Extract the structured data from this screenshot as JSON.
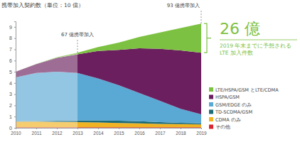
{
  "chart_data": {
    "type": "area",
    "stacked": true,
    "y_label": "携帯加入契約数（単位：10 億）",
    "categories": [
      "2010",
      "2011",
      "2012",
      "2013",
      "2014",
      "2015",
      "2016",
      "2017",
      "2018",
      "2019"
    ],
    "ylim": [
      0,
      9.5
    ],
    "yticks": [
      0,
      1,
      2,
      3,
      4,
      5,
      6,
      7,
      8,
      9
    ],
    "legend": "lower right",
    "series": [
      {
        "name": "LTE/HSPA/GSM とLTE/CDMA",
        "color": "#7dc142",
        "values": [
          0,
          0.01,
          0.06,
          0.15,
          0.35,
          0.65,
          1.0,
          1.45,
          2.0,
          2.6
        ]
      },
      {
        "name": "HSPA/GSM",
        "color": "#6b1f5e",
        "values": [
          0.5,
          0.79,
          1.24,
          1.65,
          2.45,
          3.15,
          4.0,
          4.65,
          5.2,
          5.5
        ]
      },
      {
        "name": "GSM/EDGE のみ",
        "color": "#5aa8d4",
        "values": [
          3.93,
          4.3,
          4.37,
          4.25,
          3.75,
          3.17,
          2.52,
          1.9,
          1.25,
          0.8
        ]
      },
      {
        "name": "TD-SCDMA/GSM",
        "color": "#1d6b78",
        "values": [
          0.02,
          0.05,
          0.1,
          0.15,
          0.18,
          0.2,
          0.18,
          0.15,
          0.12,
          0.1
        ]
      },
      {
        "name": "CDMA のみ",
        "color": "#f0b323",
        "values": [
          0.5,
          0.5,
          0.48,
          0.45,
          0.42,
          0.38,
          0.35,
          0.3,
          0.28,
          0.25
        ]
      },
      {
        "name": "その他",
        "color": "#d9232d",
        "values": [
          0.05,
          0.05,
          0.05,
          0.05,
          0.05,
          0.05,
          0.05,
          0.05,
          0.05,
          0.05
        ]
      }
    ],
    "annotations": [
      {
        "text": "67 億携帯加入",
        "x": "2013",
        "y": 6.7
      },
      {
        "text": "93 億携帯加入",
        "x": "2019",
        "y": 9.3
      }
    ],
    "callout": {
      "title": "26 億",
      "text": [
        "2019 年末までに予想される",
        "LTE 加入件数"
      ]
    }
  }
}
